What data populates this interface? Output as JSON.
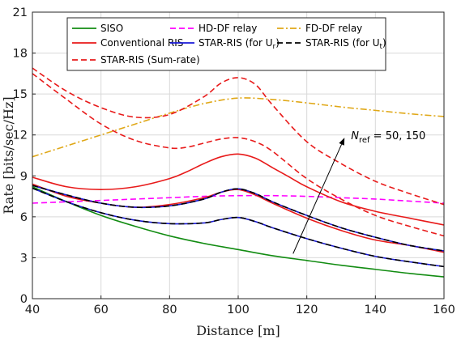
{
  "chart_data": {
    "type": "line",
    "xlabel": "Distance [m]",
    "ylabel": "Rate [bits/sec/Hz]",
    "xlim": [
      40,
      160
    ],
    "ylim": [
      0,
      21
    ],
    "xticks": [
      40,
      60,
      80,
      100,
      120,
      140,
      160
    ],
    "yticks": [
      0,
      3,
      6,
      9,
      12,
      15,
      18,
      21
    ],
    "grid": true,
    "legend_position": "top",
    "annotation": {
      "text_prefix": "N",
      "text_sub": "ref",
      "text_suffix": " = 50, 150",
      "arrow_from": [
        116,
        3.3
      ],
      "arrow_to": [
        131,
        11.8
      ]
    },
    "series": [
      {
        "name": "SISO",
        "color": "#128c12",
        "dash": "solid",
        "x": [
          40,
          50,
          60,
          70,
          80,
          90,
          100,
          110,
          120,
          130,
          140,
          150,
          160
        ],
        "y": [
          8.2,
          7.1,
          6.1,
          5.3,
          4.6,
          4.05,
          3.6,
          3.15,
          2.8,
          2.45,
          2.15,
          1.85,
          1.6
        ]
      },
      {
        "name": "HD-DF relay",
        "color": "#ff00ff",
        "dash": "dashed",
        "x": [
          40,
          50,
          60,
          70,
          80,
          90,
          100,
          110,
          120,
          130,
          140,
          150,
          160
        ],
        "y": [
          7.0,
          7.1,
          7.2,
          7.3,
          7.4,
          7.5,
          7.55,
          7.55,
          7.5,
          7.4,
          7.3,
          7.15,
          7.0
        ]
      },
      {
        "name": "FD-DF relay",
        "color": "#e0a818",
        "dash": "dashdot",
        "x": [
          40,
          50,
          60,
          70,
          80,
          90,
          100,
          110,
          120,
          130,
          140,
          150,
          160
        ],
        "y": [
          10.4,
          11.2,
          12.0,
          12.8,
          13.6,
          14.3,
          14.7,
          14.6,
          14.35,
          14.05,
          13.8,
          13.55,
          13.35
        ]
      },
      {
        "name": "Conventional RIS",
        "color": "#e81a1a",
        "dash": "solid",
        "x": [
          40,
          50,
          60,
          70,
          80,
          85,
          90,
          95,
          100,
          105,
          110,
          115,
          120,
          130,
          140,
          150,
          160
        ],
        "y": [
          8.9,
          8.2,
          8.0,
          8.2,
          8.8,
          9.3,
          9.9,
          10.4,
          10.6,
          10.3,
          9.6,
          8.9,
          8.2,
          7.1,
          6.4,
          5.9,
          5.4
        ]
      },
      {
        "name": "Conventional RIS (N=50)",
        "color": "#e81a1a",
        "dash": "solid",
        "x": [
          40,
          50,
          60,
          70,
          80,
          90,
          95,
          100,
          105,
          110,
          120,
          130,
          140,
          150,
          160
        ],
        "y": [
          8.4,
          7.5,
          7.0,
          6.7,
          6.9,
          7.4,
          7.8,
          8.0,
          7.6,
          7.0,
          5.9,
          5.0,
          4.3,
          3.9,
          3.4
        ]
      },
      {
        "name": "STAR-RIS (Sum-rate)",
        "color": "#e81a1a",
        "dash": "dashed",
        "x": [
          40,
          50,
          60,
          70,
          80,
          90,
          95,
          100,
          105,
          110,
          120,
          130,
          140,
          150,
          160
        ],
        "y": [
          16.9,
          15.2,
          14.0,
          13.3,
          13.5,
          14.8,
          15.8,
          16.2,
          15.7,
          14.2,
          11.5,
          9.9,
          8.6,
          7.7,
          6.9
        ]
      },
      {
        "name": "STAR-RIS (Sum-rate, N=50)",
        "color": "#e81a1a",
        "dash": "dashed",
        "x": [
          40,
          50,
          60,
          70,
          80,
          85,
          90,
          95,
          100,
          105,
          110,
          120,
          130,
          140,
          150,
          160
        ],
        "y": [
          16.5,
          14.6,
          12.8,
          11.6,
          11.05,
          11.1,
          11.4,
          11.7,
          11.8,
          11.5,
          10.8,
          8.8,
          7.3,
          6.1,
          5.3,
          4.6
        ]
      },
      {
        "name": "STAR-RIS (for Ur)",
        "color": "#1a1ad8",
        "dash": "solid",
        "x": [
          40,
          50,
          60,
          70,
          80,
          90,
          95,
          100,
          105,
          110,
          120,
          130,
          140,
          150,
          160
        ],
        "y": [
          8.3,
          7.6,
          7.0,
          6.7,
          6.8,
          7.3,
          7.8,
          8.05,
          7.7,
          7.1,
          6.1,
          5.2,
          4.5,
          3.9,
          3.5
        ]
      },
      {
        "name": "STAR-RIS (for Ur, N=50)",
        "color": "#1a1ad8",
        "dash": "solid",
        "x": [
          40,
          50,
          60,
          70,
          80,
          90,
          95,
          100,
          105,
          110,
          120,
          130,
          140,
          150,
          160
        ],
        "y": [
          8.1,
          7.1,
          6.3,
          5.75,
          5.5,
          5.55,
          5.8,
          5.95,
          5.65,
          5.2,
          4.4,
          3.7,
          3.1,
          2.7,
          2.35
        ]
      },
      {
        "name": "STAR-RIS (for Ut)",
        "color": "#000000",
        "dash": "dashed",
        "x": [
          40,
          50,
          60,
          70,
          80,
          90,
          95,
          100,
          105,
          110,
          120,
          130,
          140,
          150,
          160
        ],
        "y": [
          8.3,
          7.6,
          7.0,
          6.7,
          6.8,
          7.3,
          7.8,
          8.05,
          7.7,
          7.1,
          6.1,
          5.2,
          4.5,
          3.9,
          3.5
        ]
      },
      {
        "name": "STAR-RIS (for Ut, N=50)",
        "color": "#000000",
        "dash": "dashed",
        "x": [
          40,
          50,
          60,
          70,
          80,
          90,
          95,
          100,
          105,
          110,
          120,
          130,
          140,
          150,
          160
        ],
        "y": [
          8.1,
          7.1,
          6.3,
          5.75,
          5.5,
          5.55,
          5.8,
          5.95,
          5.65,
          5.2,
          4.4,
          3.7,
          3.1,
          2.7,
          2.35
        ]
      }
    ],
    "legend": [
      {
        "label": "SISO",
        "sub": "",
        "after": "",
        "color": "#128c12",
        "dash": "solid"
      },
      {
        "label": "Conventional RIS",
        "sub": "",
        "after": "",
        "color": "#e81a1a",
        "dash": "solid"
      },
      {
        "label": "STAR-RIS (Sum-rate)",
        "sub": "",
        "after": "",
        "color": "#e81a1a",
        "dash": "dashed"
      },
      {
        "label": "HD-DF relay",
        "sub": "",
        "after": "",
        "color": "#ff00ff",
        "dash": "dashed"
      },
      {
        "label": "STAR-RIS (for U",
        "sub": "r",
        "after": ")",
        "color": "#1a1ad8",
        "dash": "solid"
      },
      {
        "label": "FD-DF relay",
        "sub": "",
        "after": "",
        "color": "#e0a818",
        "dash": "dashdot"
      },
      {
        "label": "STAR-RIS (for U",
        "sub": "t",
        "after": ")",
        "color": "#000000",
        "dash": "dashed"
      }
    ]
  }
}
